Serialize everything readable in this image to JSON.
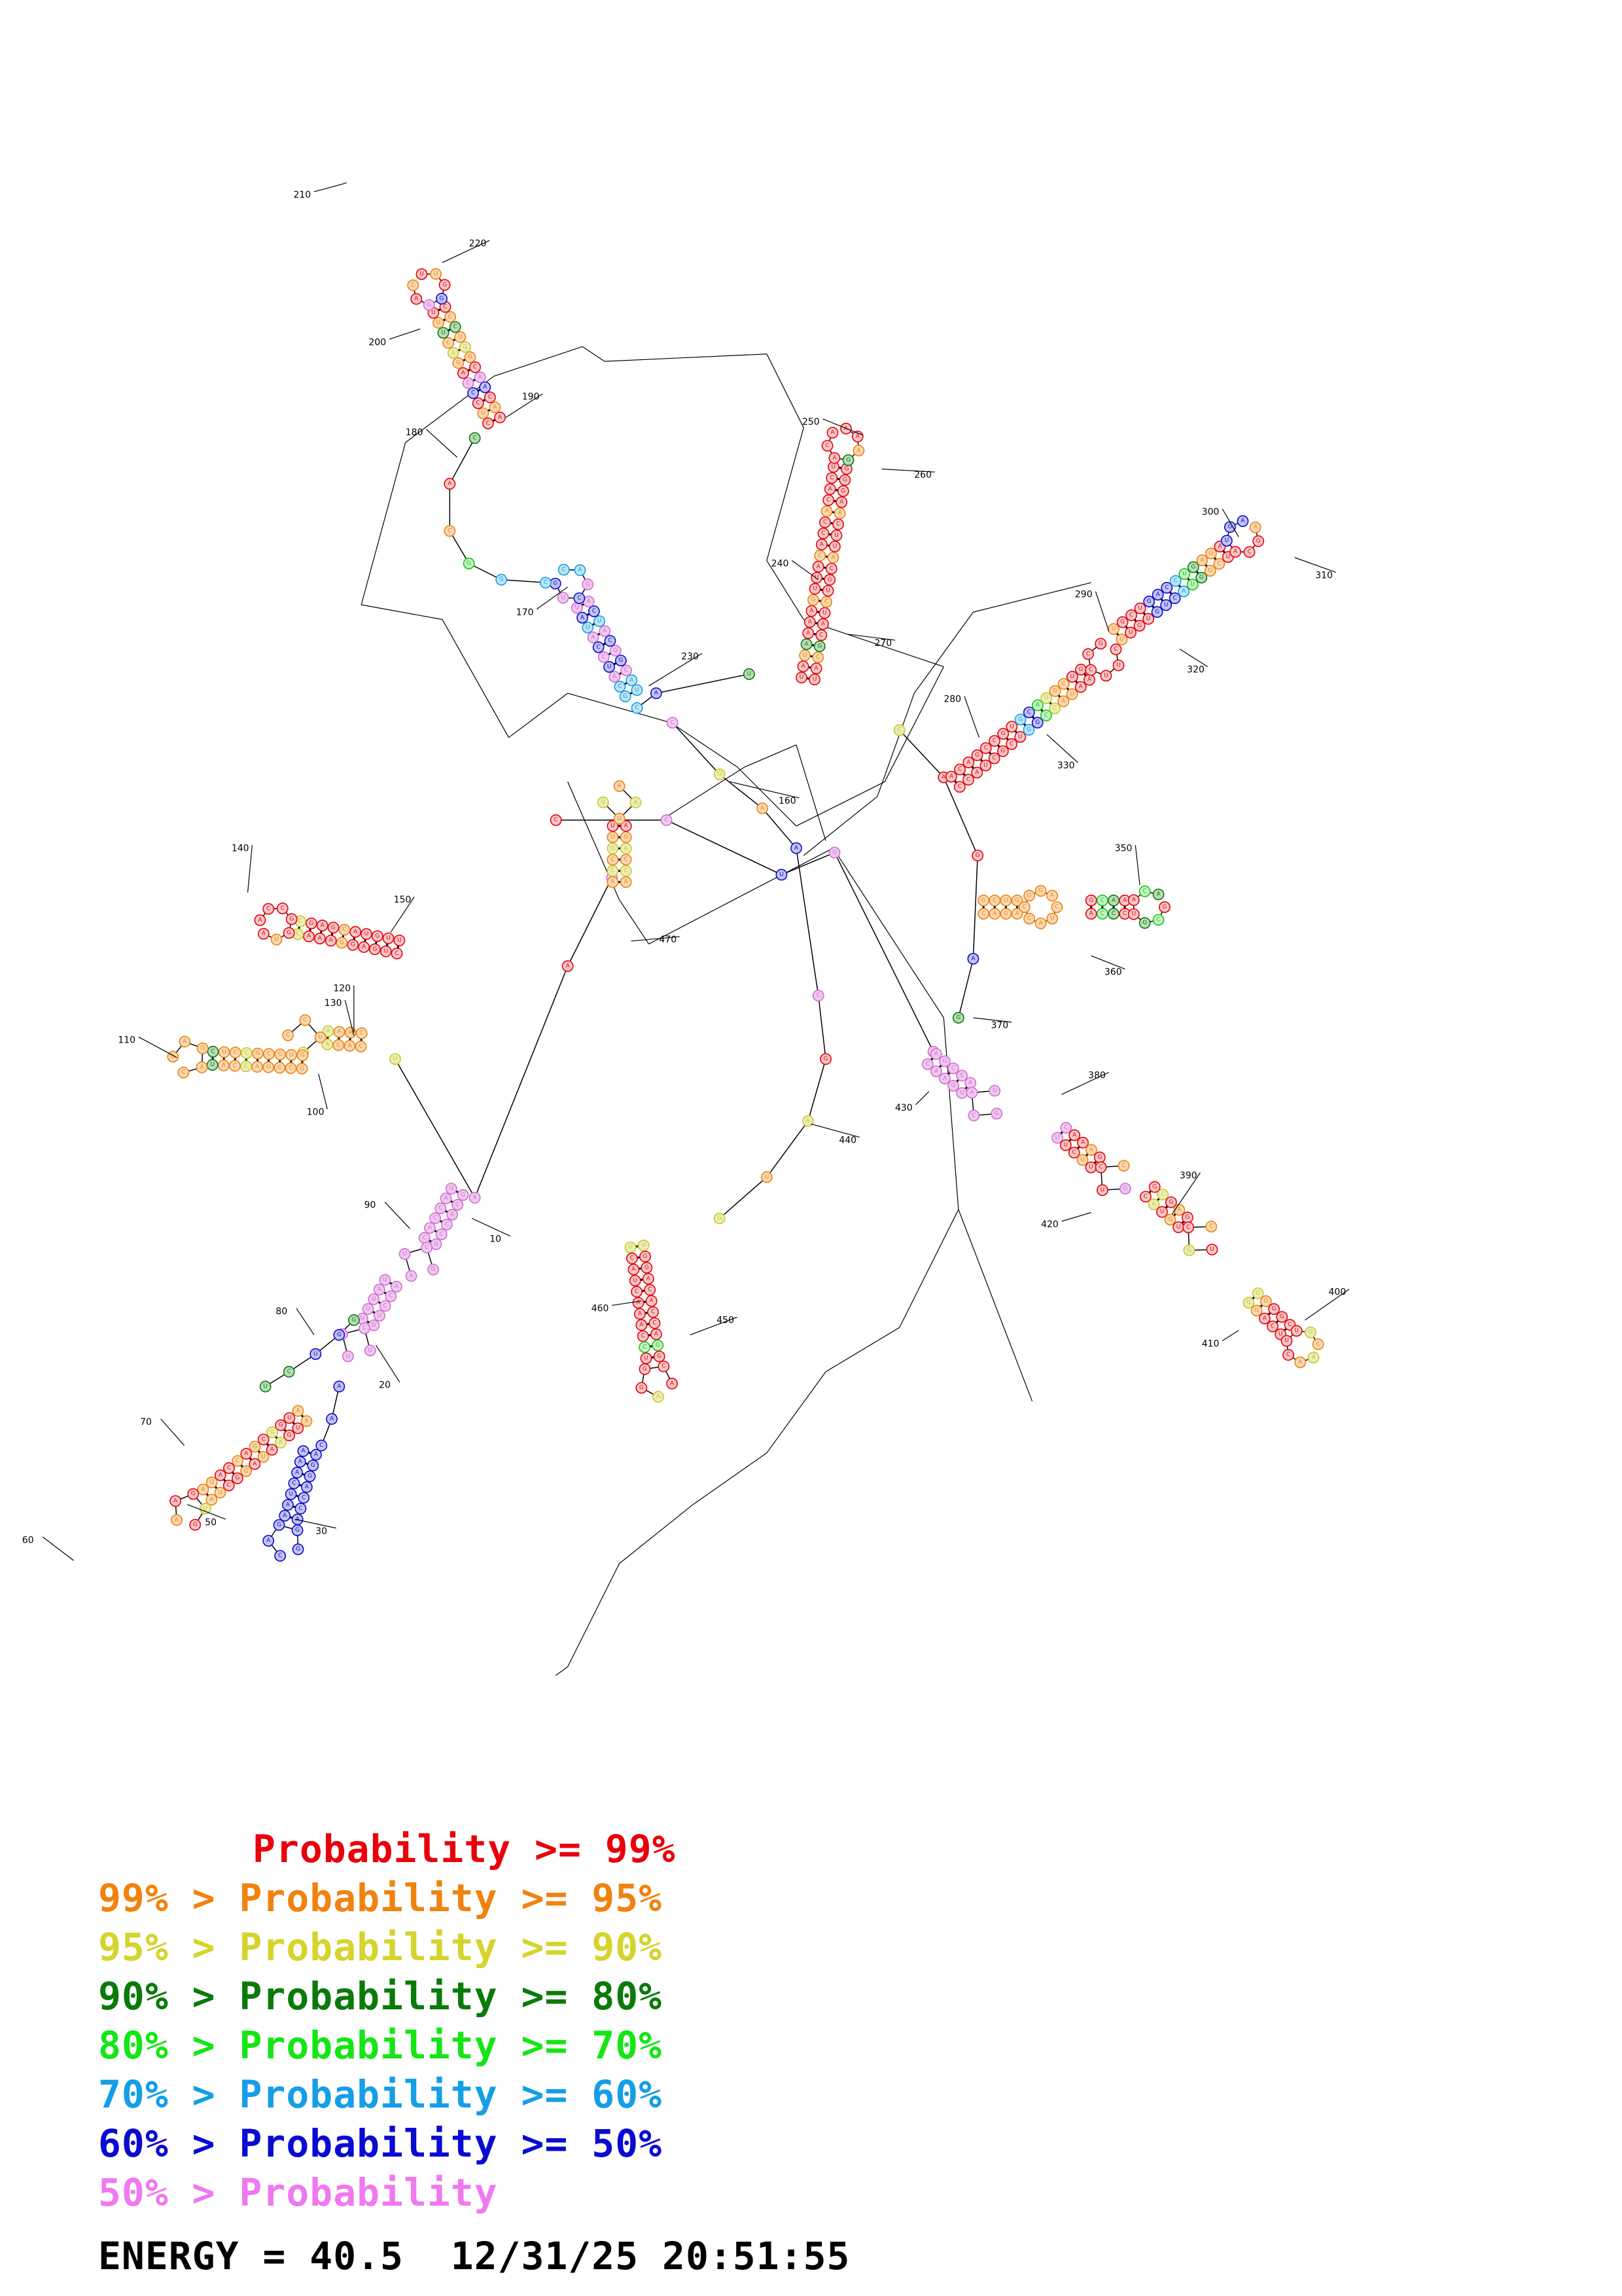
{
  "legend": [
    {
      "range": "",
      "label": "Probability >= 99%",
      "color": "#e8000b"
    },
    {
      "range": "99% > ",
      "label": "Probability >= 95%",
      "color": "#f0820f"
    },
    {
      "range": "95% > ",
      "label": "Probability >= 90%",
      "color": "#d4d42c"
    },
    {
      "range": "90% > ",
      "label": "Probability >= 80%",
      "color": "#0a7a0a"
    },
    {
      "range": "80% > ",
      "label": "Probability >= 70%",
      "color": "#14e614"
    },
    {
      "range": "70% > ",
      "label": "Probability >= 60%",
      "color": "#149ee6"
    },
    {
      "range": "60% > ",
      "label": "Probability >= 50%",
      "color": "#0a0ad2"
    },
    {
      "range": "50% > ",
      "label": "Probability",
      "color": "#f078f0"
    }
  ],
  "energy_line": "ENERGY = 40.5  12/31/25 20:51:55",
  "numbering": [
    "10",
    "20",
    "30",
    "50",
    "60",
    "70",
    "80",
    "90",
    "100",
    "110",
    "120",
    "130",
    "140",
    "150",
    "160",
    "170",
    "180",
    "190",
    "200",
    "210",
    "220",
    "230",
    "240",
    "250",
    "260",
    "270",
    "280",
    "290",
    "300",
    "310",
    "320",
    "330",
    "350",
    "360",
    "370",
    "380",
    "390",
    "400",
    "410",
    "420",
    "430",
    "440",
    "450",
    "460",
    "470"
  ],
  "probability_fills": {
    "red": "#f6c8c8",
    "orange": "#f7d9b5",
    "yellow": "#ecedb8",
    "darkgreen": "#b9dcb9",
    "green": "#c6f2c6",
    "cyan": "#bfe4f6",
    "blue": "#c3c3ef",
    "pink": "#efc8ef"
  },
  "probability_strokes": {
    "red": "#e8000b",
    "orange": "#f0820f",
    "yellow": "#c8c82c",
    "darkgreen": "#0a7a0a",
    "green": "#14c814",
    "cyan": "#149ee6",
    "blue": "#0a0ad2",
    "pink": "#d070d0"
  }
}
